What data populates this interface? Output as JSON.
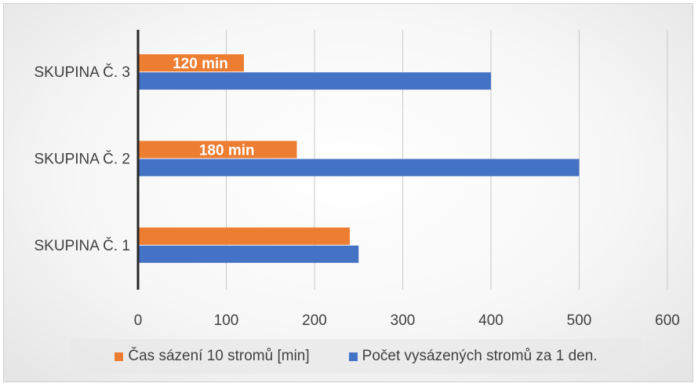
{
  "chart_data": {
    "type": "bar",
    "orientation": "horizontal",
    "categories": [
      "SKUPINA Č. 1",
      "SKUPINA Č. 2",
      "SKUPINA Č. 3"
    ],
    "series": [
      {
        "name": "Čas sázení 10 stromů [min]",
        "values": [
          240,
          180,
          120
        ],
        "color": "#ED7D31",
        "data_labels": [
          "",
          "180 min",
          "120 min"
        ]
      },
      {
        "name": "Počet vysázených stromů za 1 den.",
        "values": [
          250,
          500,
          400
        ],
        "color": "#4472C4"
      }
    ],
    "xlim": [
      0,
      600
    ],
    "x_ticks": [
      "0",
      "100",
      "200",
      "300",
      "400",
      "500",
      "600"
    ],
    "grid": "vertical",
    "legend_position": "bottom"
  }
}
